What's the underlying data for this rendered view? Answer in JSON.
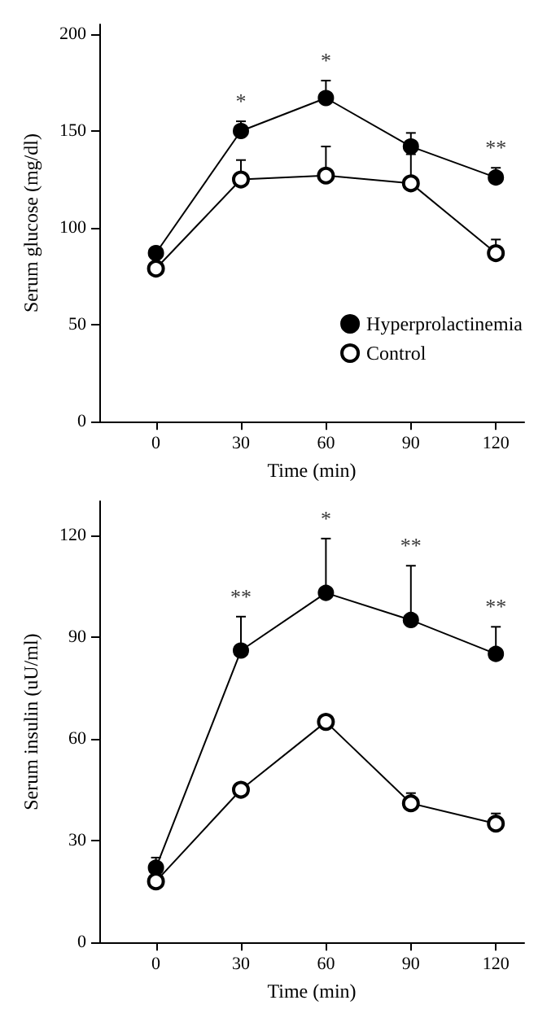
{
  "chart_data": [
    {
      "type": "line",
      "xlabel": "Time (min)",
      "ylabel": "Serum glucose (mg/dl)",
      "x": [
        0,
        30,
        60,
        90,
        120
      ],
      "xlim": [
        -20,
        130
      ],
      "xticks": [
        0,
        30,
        60,
        90,
        120
      ],
      "ylim": [
        0,
        205
      ],
      "yticks": [
        0,
        50,
        100,
        150,
        200
      ],
      "grid": false,
      "legend": "bottom right",
      "marker": "circle",
      "line_style": "solid",
      "series": [
        {
          "name": "Hyperprolactinemia",
          "color": "#000000",
          "values": [
            87,
            150,
            167,
            142,
            126
          ],
          "errors": [
            [
              87,
              90
            ],
            [
              150,
              155
            ],
            [
              167,
              176
            ],
            [
              142,
              149
            ],
            [
              126,
              131
            ]
          ]
        },
        {
          "name": "Control",
          "color": "#000000",
          "values": [
            79,
            125,
            127,
            123,
            87
          ],
          "errors": [
            [
              79,
              82
            ],
            [
              125,
              135
            ],
            [
              127,
              142
            ],
            [
              123,
              138
            ],
            [
              87,
              94
            ]
          ]
        }
      ],
      "annotations": [
        {
          "text": "*",
          "x": 30,
          "y": 155
        },
        {
          "text": "*",
          "x": 60,
          "y": 176
        },
        {
          "text": "**",
          "x": 120,
          "y": 131
        }
      ]
    },
    {
      "type": "line",
      "xlabel": "Time (min)",
      "ylabel": "Serum insulin (uU/ml)",
      "x": [
        0,
        30,
        60,
        90,
        120
      ],
      "xlim": [
        -20,
        130
      ],
      "xticks": [
        0,
        30,
        60,
        90,
        120
      ],
      "ylim": [
        0,
        130
      ],
      "yticks": [
        0,
        30,
        60,
        90,
        120
      ],
      "grid": false,
      "marker": "circle",
      "line_style": "solid",
      "series": [
        {
          "color": "#000000",
          "values": [
            22,
            86,
            103,
            95,
            85
          ],
          "errors": [
            [
              22,
              25
            ],
            [
              86,
              96
            ],
            [
              103,
              119
            ],
            [
              95,
              111
            ],
            [
              85,
              93
            ]
          ]
        },
        {
          "color": "#000000",
          "values": [
            18,
            45,
            65,
            41,
            35
          ],
          "errors": [
            null,
            null,
            [
              65,
              66
            ],
            [
              41,
              44
            ],
            [
              35,
              38
            ]
          ]
        }
      ],
      "annotations": [
        {
          "text": "**",
          "x": 30,
          "y": 96
        },
        {
          "text": "*",
          "x": 60,
          "y": 119
        },
        {
          "text": "**",
          "x": 90,
          "y": 111
        },
        {
          "text": "**",
          "x": 120,
          "y": 93
        }
      ]
    }
  ]
}
